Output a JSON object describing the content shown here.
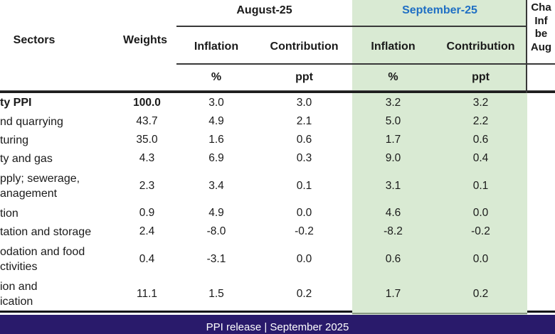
{
  "colors": {
    "highlight_green": "#d9ead3",
    "september_blue": "#1f6fc4",
    "footer_navy": "#291a6b",
    "rule_dark": "#383838"
  },
  "table": {
    "col_sectors": "Sectors",
    "col_weights": "Weights",
    "group_august": "August-25",
    "group_september": "September-25",
    "sub_inflation_aug": "Inflation",
    "sub_contribution_aug": "Contribution",
    "sub_inflation_sep": "Inflation",
    "sub_contribution_sep": "Contribution",
    "unit_pct_aug": "%",
    "unit_ppt_aug": "ppt",
    "unit_pct_sep": "%",
    "unit_ppt_sep": "ppt",
    "change_header_clipped": "Cha\nInf\nbe\nAug",
    "rows": [
      {
        "sector": "ty PPI",
        "weight": "100.0",
        "aug_inf": "3.0",
        "aug_con": "3.0",
        "sep_inf": "3.2",
        "sep_con": "3.2"
      },
      {
        "sector": "nd quarrying",
        "weight": "43.7",
        "aug_inf": "4.9",
        "aug_con": "2.1",
        "sep_inf": "5.0",
        "sep_con": "2.2"
      },
      {
        "sector": "turing",
        "weight": "35.0",
        "aug_inf": "1.6",
        "aug_con": "0.6",
        "sep_inf": "1.7",
        "sep_con": "0.6"
      },
      {
        "sector": "ty and gas",
        "weight": "4.3",
        "aug_inf": "6.9",
        "aug_con": "0.3",
        "sep_inf": "9.0",
        "sep_con": "0.4"
      },
      {
        "sector": "pply; sewerage,\nanagement",
        "weight": "2.3",
        "aug_inf": "3.4",
        "aug_con": "0.1",
        "sep_inf": "3.1",
        "sep_con": "0.1"
      },
      {
        "sector": "tion",
        "weight": "0.9",
        "aug_inf": "4.9",
        "aug_con": "0.0",
        "sep_inf": "4.6",
        "sep_con": "0.0"
      },
      {
        "sector": "tation and storage",
        "weight": "2.4",
        "aug_inf": "-8.0",
        "aug_con": "-0.2",
        "sep_inf": "-8.2",
        "sep_con": "-0.2"
      },
      {
        "sector": "odation and food\nctivities",
        "weight": "0.4",
        "aug_inf": "-3.1",
        "aug_con": "0.0",
        "sep_inf": "0.6",
        "sep_con": "0.0"
      },
      {
        "sector": "ion and\nication",
        "weight": "11.1",
        "aug_inf": "1.5",
        "aug_con": "0.2",
        "sep_inf": "1.7",
        "sep_con": "0.2"
      }
    ]
  },
  "footer": {
    "text": "PPI release | September 2025"
  }
}
